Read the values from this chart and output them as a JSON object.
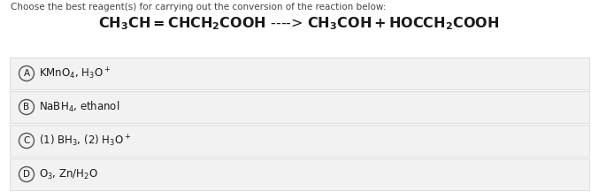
{
  "title_instruction": "Choose the best reagent(s) for carrying out the conversion of the reaction below:",
  "bg_color": "#ffffff",
  "option_bg": "#f2f2f2",
  "option_border": "#d8d8d8",
  "text_color": "#1a1a1a",
  "instruction_color": "#444444",
  "circle_color": "#555555",
  "options": [
    {
      "label": "A",
      "text": "KMnO$_4$, H$_3$O$^+$"
    },
    {
      "label": "B",
      "text": "NaBH$_4$, ethanol"
    },
    {
      "label": "C",
      "text": "(1) BH$_3$, (2) H$_3$O$^+$"
    },
    {
      "label": "D",
      "text": "O$_3$, Zn/H$_2$O"
    }
  ],
  "instruction_fontsize": 7.5,
  "reaction_fontsize": 11.5,
  "option_fontsize": 8.5,
  "label_fontsize": 7.5
}
